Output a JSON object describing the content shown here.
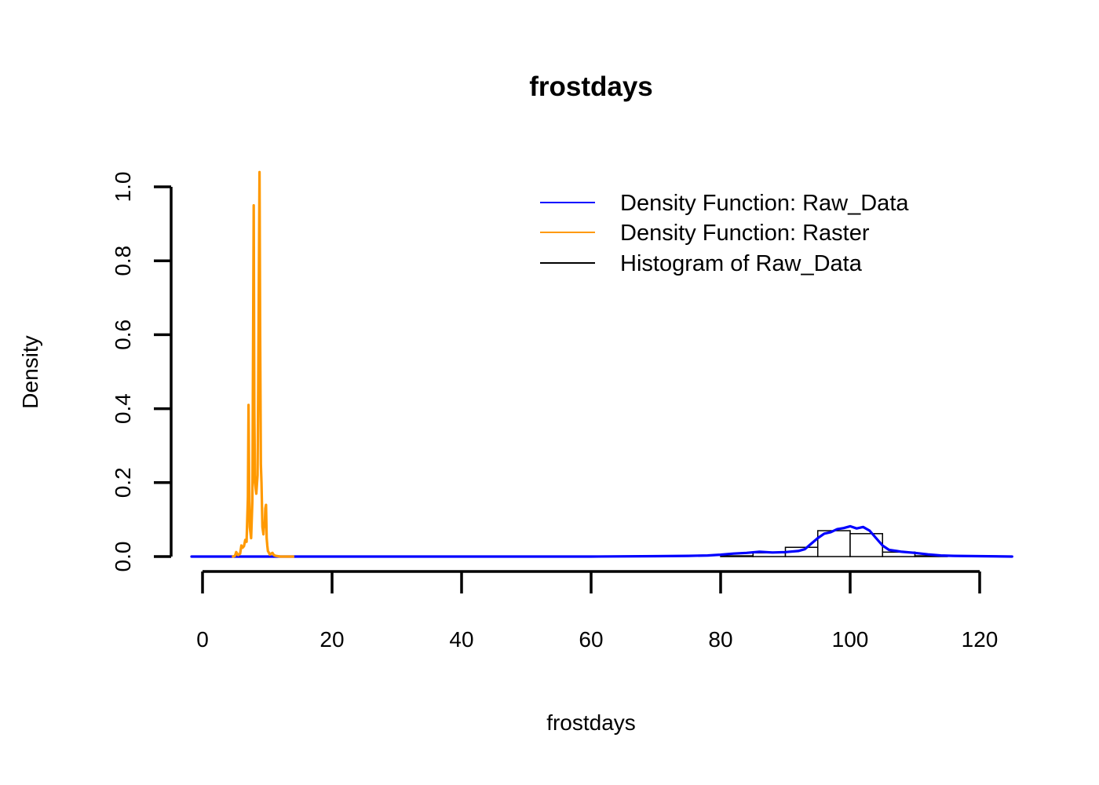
{
  "chart_data": {
    "type": "line",
    "title": "frostdays",
    "xlabel": "frostdays",
    "ylabel": "Density",
    "xlim": [
      -2,
      125
    ],
    "ylim": [
      0,
      1.04
    ],
    "x_ticks": [
      0,
      20,
      40,
      60,
      80,
      100,
      120
    ],
    "x_tick_labels": [
      "0",
      "20",
      "40",
      "60",
      "80",
      "100",
      "120"
    ],
    "y_ticks": [
      0,
      0.2,
      0.4,
      0.6,
      0.8,
      1.0
    ],
    "y_tick_labels": [
      "0.0",
      "0.2",
      "0.4",
      "0.6",
      "0.8",
      "1.0"
    ],
    "grid": false,
    "legend_position": "top-right",
    "legend": [
      {
        "label": "Density Function: Raw_Data",
        "color": "#0000ff"
      },
      {
        "label": "Density Function: Raster",
        "color": "#ff9900"
      },
      {
        "label": "Histogram of Raw_Data",
        "color": "#000000"
      }
    ],
    "histogram": {
      "name": "Histogram of Raw_Data",
      "bins": [
        {
          "from": 80,
          "to": 85,
          "density": 0.002
        },
        {
          "from": 85,
          "to": 90,
          "density": 0.01
        },
        {
          "from": 90,
          "to": 95,
          "density": 0.025
        },
        {
          "from": 95,
          "to": 100,
          "density": 0.07
        },
        {
          "from": 100,
          "to": 105,
          "density": 0.062
        },
        {
          "from": 105,
          "to": 110,
          "density": 0.012
        },
        {
          "from": 110,
          "to": 115,
          "density": 0.002
        }
      ]
    },
    "series": [
      {
        "name": "Density Function: Raw_Data",
        "color": "#0000ff",
        "x": [
          -2,
          20,
          40,
          60,
          70,
          75,
          78,
          80,
          82,
          84,
          86,
          88,
          90,
          92,
          93,
          94,
          95,
          96,
          97,
          98,
          99,
          100,
          101,
          102,
          103,
          104,
          105,
          106,
          108,
          110,
          112,
          114,
          116,
          120,
          125
        ],
        "y": [
          0,
          0,
          0,
          0,
          0.001,
          0.002,
          0.003,
          0.005,
          0.008,
          0.01,
          0.013,
          0.011,
          0.012,
          0.015,
          0.02,
          0.035,
          0.05,
          0.062,
          0.066,
          0.074,
          0.077,
          0.082,
          0.076,
          0.08,
          0.07,
          0.05,
          0.03,
          0.018,
          0.013,
          0.01,
          0.006,
          0.003,
          0.002,
          0.001,
          0
        ]
      },
      {
        "name": "Density Function: Raster",
        "color": "#ff9900",
        "x": [
          4.7,
          5.0,
          5.2,
          5.5,
          5.8,
          6.0,
          6.2,
          6.4,
          6.6,
          6.8,
          7.0,
          7.1,
          7.2,
          7.3,
          7.5,
          7.7,
          7.9,
          8.0,
          8.1,
          8.3,
          8.5,
          8.6,
          8.8,
          8.9,
          9.0,
          9.1,
          9.25,
          9.4,
          9.5,
          9.6,
          9.7,
          9.8,
          9.9,
          10.0,
          10.1,
          10.2,
          10.4,
          10.6,
          10.8,
          11.0,
          11.3,
          11.6,
          12.0,
          13.0,
          14.0
        ],
        "y": [
          0,
          0.002,
          0.012,
          0.004,
          0.008,
          0.03,
          0.024,
          0.028,
          0.045,
          0.04,
          0.16,
          0.41,
          0.2,
          0.08,
          0.05,
          0.15,
          0.95,
          0.4,
          0.2,
          0.17,
          0.22,
          0.45,
          1.04,
          0.6,
          0.25,
          0.2,
          0.08,
          0.06,
          0.09,
          0.08,
          0.13,
          0.14,
          0.05,
          0.03,
          0.015,
          0.012,
          0.005,
          0.008,
          0.01,
          0.004,
          0.002,
          0.001,
          0,
          0,
          0
        ]
      }
    ]
  }
}
